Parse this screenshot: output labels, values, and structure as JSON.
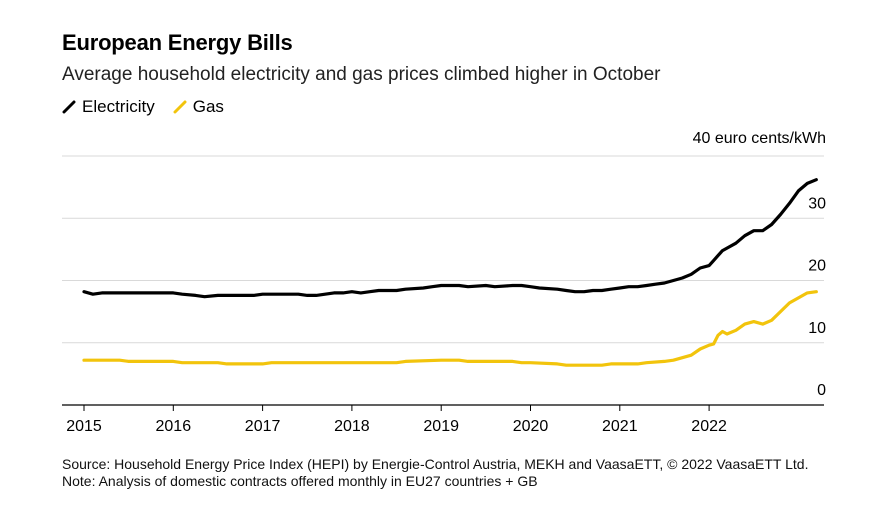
{
  "header": {
    "title": "European Energy Bills",
    "subtitle": "Average household electricity and gas prices climbed higher in October"
  },
  "footer": {
    "source": "Source: Household Energy Price Index (HEPI) by Energie-Control Austria, MEKH and VaasaETT, © 2022 VaasaETT Ltd.",
    "note": "Note: Analysis of domestic contracts offered monthly in EU27 countries + GB"
  },
  "chart_data": {
    "type": "line",
    "y_unit_label": "40 euro cents/kWh",
    "ylim": [
      0,
      40
    ],
    "yticks": [
      0,
      10,
      20,
      30,
      40
    ],
    "ytick_labels": [
      "0",
      "10",
      "20",
      "30"
    ],
    "xlim": [
      2015,
      2023.25
    ],
    "xticks": [
      2015,
      2016,
      2017,
      2018,
      2019,
      2020,
      2021,
      2022
    ],
    "xtick_labels": [
      "2015",
      "2016",
      "2017",
      "2018",
      "2019",
      "2020",
      "2021",
      "2022"
    ],
    "grid": true,
    "legend_position": "top-left",
    "series": [
      {
        "name": "Electricity",
        "color": "#000000",
        "points": [
          [
            2015.0,
            18.2
          ],
          [
            2015.1,
            17.8
          ],
          [
            2015.2,
            18.0
          ],
          [
            2015.5,
            18.0
          ],
          [
            2015.8,
            18.0
          ],
          [
            2016.0,
            18.0
          ],
          [
            2016.1,
            17.8
          ],
          [
            2016.25,
            17.6
          ],
          [
            2016.35,
            17.4
          ],
          [
            2016.5,
            17.6
          ],
          [
            2016.8,
            17.6
          ],
          [
            2016.9,
            17.6
          ],
          [
            2017.0,
            17.8
          ],
          [
            2017.3,
            17.8
          ],
          [
            2017.4,
            17.8
          ],
          [
            2017.5,
            17.6
          ],
          [
            2017.6,
            17.6
          ],
          [
            2017.7,
            17.8
          ],
          [
            2017.8,
            18.0
          ],
          [
            2017.9,
            18.0
          ],
          [
            2018.0,
            18.2
          ],
          [
            2018.1,
            18.0
          ],
          [
            2018.2,
            18.2
          ],
          [
            2018.3,
            18.4
          ],
          [
            2018.5,
            18.4
          ],
          [
            2018.6,
            18.6
          ],
          [
            2018.8,
            18.8
          ],
          [
            2018.9,
            19.0
          ],
          [
            2019.0,
            19.2
          ],
          [
            2019.2,
            19.2
          ],
          [
            2019.3,
            19.0
          ],
          [
            2019.5,
            19.2
          ],
          [
            2019.6,
            19.0
          ],
          [
            2019.8,
            19.2
          ],
          [
            2019.9,
            19.2
          ],
          [
            2020.0,
            19.0
          ],
          [
            2020.1,
            18.8
          ],
          [
            2020.3,
            18.6
          ],
          [
            2020.4,
            18.4
          ],
          [
            2020.5,
            18.2
          ],
          [
            2020.6,
            18.2
          ],
          [
            2020.7,
            18.4
          ],
          [
            2020.8,
            18.4
          ],
          [
            2020.9,
            18.6
          ],
          [
            2021.0,
            18.8
          ],
          [
            2021.1,
            19.0
          ],
          [
            2021.2,
            19.0
          ],
          [
            2021.3,
            19.2
          ],
          [
            2021.4,
            19.4
          ],
          [
            2021.5,
            19.6
          ],
          [
            2021.6,
            20.0
          ],
          [
            2021.7,
            20.4
          ],
          [
            2021.8,
            21.0
          ],
          [
            2021.9,
            22.0
          ],
          [
            2022.0,
            22.4
          ],
          [
            2022.05,
            23.2
          ],
          [
            2022.1,
            24.0
          ],
          [
            2022.15,
            24.8
          ],
          [
            2022.2,
            25.2
          ],
          [
            2022.3,
            26.0
          ],
          [
            2022.4,
            27.2
          ],
          [
            2022.5,
            28.0
          ],
          [
            2022.6,
            28.0
          ],
          [
            2022.7,
            29.0
          ],
          [
            2022.8,
            30.6
          ],
          [
            2022.9,
            32.4
          ],
          [
            2023.0,
            34.4
          ],
          [
            2023.1,
            35.6
          ],
          [
            2023.2,
            36.2
          ]
        ]
      },
      {
        "name": "Gas",
        "color": "#f2c40c",
        "points": [
          [
            2015.0,
            7.2
          ],
          [
            2015.4,
            7.2
          ],
          [
            2015.5,
            7.0
          ],
          [
            2016.0,
            7.0
          ],
          [
            2016.1,
            6.8
          ],
          [
            2016.5,
            6.8
          ],
          [
            2016.6,
            6.6
          ],
          [
            2017.0,
            6.6
          ],
          [
            2017.1,
            6.8
          ],
          [
            2018.0,
            6.8
          ],
          [
            2018.5,
            6.8
          ],
          [
            2018.6,
            7.0
          ],
          [
            2019.0,
            7.2
          ],
          [
            2019.2,
            7.2
          ],
          [
            2019.3,
            7.0
          ],
          [
            2019.8,
            7.0
          ],
          [
            2019.9,
            6.8
          ],
          [
            2020.0,
            6.8
          ],
          [
            2020.3,
            6.6
          ],
          [
            2020.4,
            6.4
          ],
          [
            2020.8,
            6.4
          ],
          [
            2020.9,
            6.6
          ],
          [
            2021.0,
            6.6
          ],
          [
            2021.2,
            6.6
          ],
          [
            2021.3,
            6.8
          ],
          [
            2021.5,
            7.0
          ],
          [
            2021.6,
            7.2
          ],
          [
            2021.7,
            7.6
          ],
          [
            2021.8,
            8.0
          ],
          [
            2021.9,
            9.0
          ],
          [
            2022.0,
            9.6
          ],
          [
            2022.05,
            9.8
          ],
          [
            2022.1,
            11.2
          ],
          [
            2022.15,
            11.8
          ],
          [
            2022.2,
            11.4
          ],
          [
            2022.3,
            12.0
          ],
          [
            2022.4,
            13.0
          ],
          [
            2022.5,
            13.4
          ],
          [
            2022.6,
            13.0
          ],
          [
            2022.7,
            13.6
          ],
          [
            2022.8,
            15.0
          ],
          [
            2022.9,
            16.4
          ],
          [
            2023.0,
            17.2
          ],
          [
            2023.1,
            18.0
          ],
          [
            2023.2,
            18.2
          ]
        ]
      }
    ]
  }
}
